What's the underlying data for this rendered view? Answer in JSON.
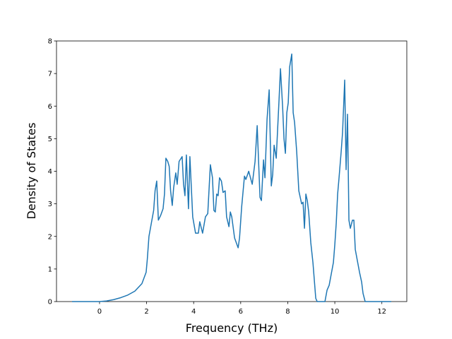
{
  "chart_data": {
    "type": "line",
    "xlabel": "Frequency (THz)",
    "ylabel": "Density of States",
    "x": [
      -1.17,
      0,
      0.3,
      0.6,
      0.9,
      1.2,
      1.5,
      1.8,
      1.98,
      2.03,
      2.1,
      2.2,
      2.3,
      2.36,
      2.43,
      2.5,
      2.6,
      2.7,
      2.76,
      2.82,
      2.9,
      2.96,
      3.02,
      3.09,
      3.15,
      3.24,
      3.3,
      3.38,
      3.51,
      3.57,
      3.63,
      3.69,
      3.78,
      3.84,
      3.96,
      4.08,
      4.2,
      4.26,
      4.38,
      4.5,
      4.6,
      4.71,
      4.8,
      4.86,
      4.92,
      4.98,
      5.04,
      5.1,
      5.18,
      5.25,
      5.34,
      5.4,
      5.5,
      5.56,
      5.62,
      5.74,
      5.89,
      5.95,
      6.04,
      6.16,
      6.22,
      6.34,
      6.49,
      6.61,
      6.7,
      6.82,
      6.88,
      6.97,
      7.03,
      7.12,
      7.21,
      7.3,
      7.36,
      7.42,
      7.51,
      7.63,
      7.69,
      7.78,
      7.84,
      7.9,
      7.96,
      8.02,
      8.08,
      8.17,
      8.23,
      8.29,
      8.38,
      8.47,
      8.59,
      8.65,
      8.71,
      8.77,
      8.83,
      8.89,
      8.98,
      9.07,
      9.19,
      9.25,
      9.58,
      9.67,
      9.76,
      9.85,
      9.94,
      10.0,
      10.06,
      10.12,
      10.18,
      10.27,
      10.33,
      10.42,
      10.48,
      10.54,
      10.6,
      10.66,
      10.75,
      10.81,
      10.87,
      10.96,
      11.05,
      11.14,
      11.2,
      11.29,
      12.4
    ],
    "series": [
      {
        "color": "#1f77b4",
        "values": [
          0,
          0,
          0.02,
          0.06,
          0.12,
          0.2,
          0.32,
          0.55,
          0.9,
          1.3,
          2.0,
          2.4,
          2.8,
          3.4,
          3.7,
          2.5,
          2.65,
          2.85,
          3.3,
          4.4,
          4.3,
          4.15,
          3.4,
          2.95,
          3.5,
          3.95,
          3.6,
          4.3,
          4.45,
          3.6,
          3.25,
          4.5,
          2.85,
          4.45,
          2.6,
          2.1,
          2.1,
          2.45,
          2.1,
          2.6,
          2.7,
          4.2,
          3.8,
          2.8,
          2.75,
          3.3,
          3.25,
          3.8,
          3.7,
          3.35,
          3.4,
          2.6,
          2.3,
          2.75,
          2.6,
          1.95,
          1.65,
          1.95,
          2.9,
          3.85,
          3.75,
          4.0,
          3.6,
          4.3,
          5.4,
          3.2,
          3.1,
          4.35,
          3.8,
          5.6,
          6.5,
          3.55,
          3.9,
          4.8,
          4.4,
          6.2,
          7.15,
          6.0,
          5.0,
          4.55,
          5.8,
          6.1,
          7.2,
          7.6,
          5.8,
          5.5,
          4.6,
          3.4,
          3.0,
          3.05,
          2.25,
          3.3,
          3.1,
          2.75,
          1.8,
          1.2,
          0.1,
          0,
          0,
          0.35,
          0.5,
          0.85,
          1.2,
          1.75,
          2.4,
          3.3,
          3.8,
          4.6,
          5.2,
          6.8,
          4.05,
          5.75,
          2.5,
          2.25,
          2.5,
          2.5,
          1.6,
          1.25,
          0.9,
          0.6,
          0.25,
          0,
          0
        ]
      }
    ],
    "xlim": [
      -1.83,
      13.06
    ],
    "ylim": [
      0,
      8
    ],
    "xticks": [
      0,
      2,
      4,
      6,
      8,
      10,
      12
    ],
    "yticks": [
      0,
      1,
      2,
      3,
      4,
      5,
      6,
      7,
      8
    ]
  }
}
